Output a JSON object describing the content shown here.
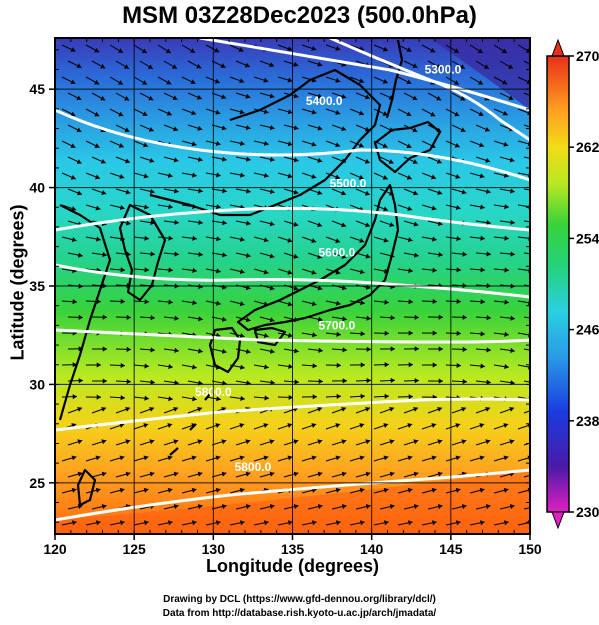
{
  "title": "MSM 03Z28Dec2023 (500.0hPa)",
  "axes": {
    "xlabel": "Longitude (degrees)",
    "ylabel": "Latitude  (degrees)",
    "xticks": [
      "120",
      "125",
      "130",
      "135",
      "140",
      "145",
      "150"
    ],
    "yticks": [
      "25",
      "30",
      "35",
      "40",
      "45"
    ],
    "xrange": [
      120,
      150
    ],
    "yrange": [
      22.4,
      47.6
    ]
  },
  "colorbar": {
    "ticks": [
      "270",
      "262",
      "254",
      "246",
      "238",
      "230"
    ],
    "range": [
      230,
      270
    ]
  },
  "contour_labels": [
    {
      "text": "5300.0",
      "lon": 144.5,
      "lat": 45.8
    },
    {
      "text": "5400.0",
      "lon": 137.0,
      "lat": 44.2
    },
    {
      "text": "5500.0",
      "lon": 138.5,
      "lat": 40.0
    },
    {
      "text": "5600.0",
      "lon": 137.8,
      "lat": 36.5
    },
    {
      "text": "5700.0",
      "lon": 137.8,
      "lat": 32.8
    },
    {
      "text": "5800.0",
      "lon": 130.0,
      "lat": 29.4
    },
    {
      "text": "5800.0",
      "lon": 132.5,
      "lat": 25.6
    }
  ],
  "credits": {
    "line1": "Drawing by DCL (https://www.gfd-dennou.org/library/dcl/)",
    "line2": "Data from http://database.rish.kyoto-u.ac.jp/arch/jmadata/"
  },
  "colors": {
    "contour": "#ffffff",
    "land_outline": "#000000",
    "vectors": "#000000"
  }
}
